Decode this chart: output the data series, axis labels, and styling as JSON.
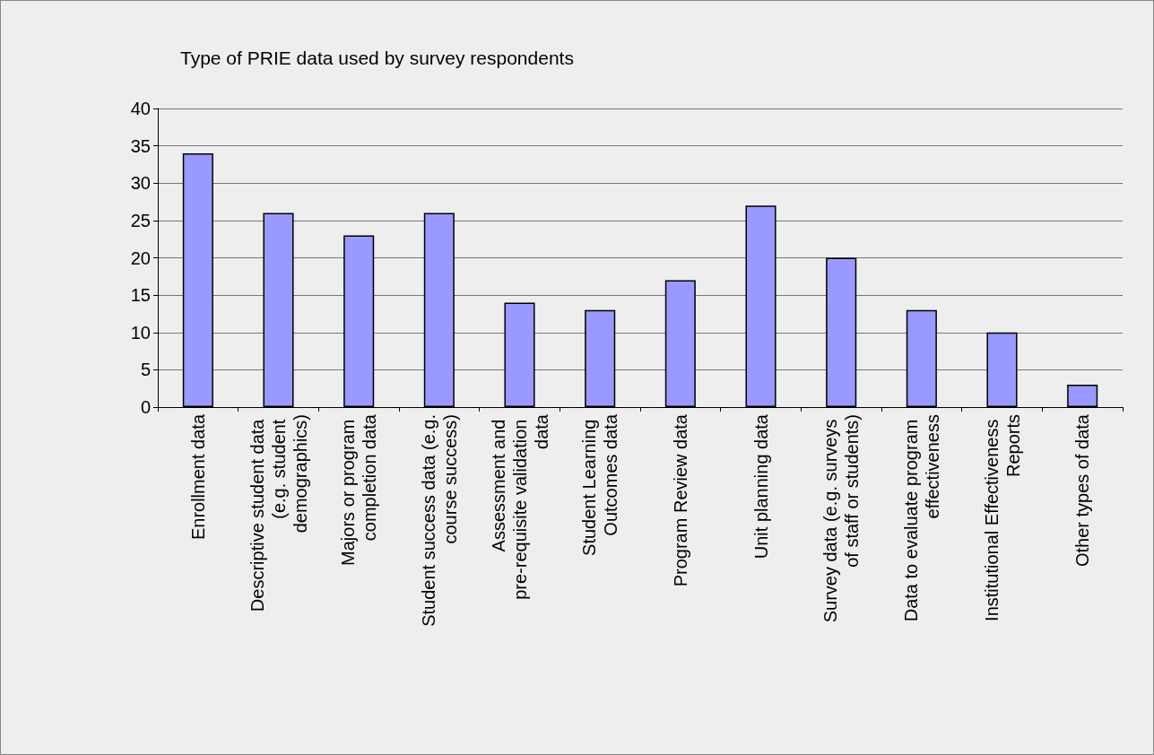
{
  "chart_data": {
    "type": "bar",
    "title": "Type of PRIE data used by survey respondents",
    "categories": [
      "Enrollment data",
      "Descriptive student data (e.g. student demographics)",
      "Majors or program completion data",
      "Student success data (e.g. course success)",
      "Assessment and pre-requisite validation data",
      "Student Learning Outcomes data",
      "Program Review data",
      "Unit planning data",
      "Survey data (e.g. surveys of staff or students)",
      "Data to evaluate program effectiveness",
      "Institutional Effectiveness Reports",
      "Other types of data"
    ],
    "values": [
      34,
      26,
      23,
      26,
      14,
      13,
      17,
      27,
      20,
      13,
      10,
      3
    ],
    "color": "#9999ff",
    "ylim": [
      0,
      40
    ],
    "yticks": [
      0,
      5,
      10,
      15,
      20,
      25,
      30,
      35,
      40
    ],
    "grid": "y"
  }
}
